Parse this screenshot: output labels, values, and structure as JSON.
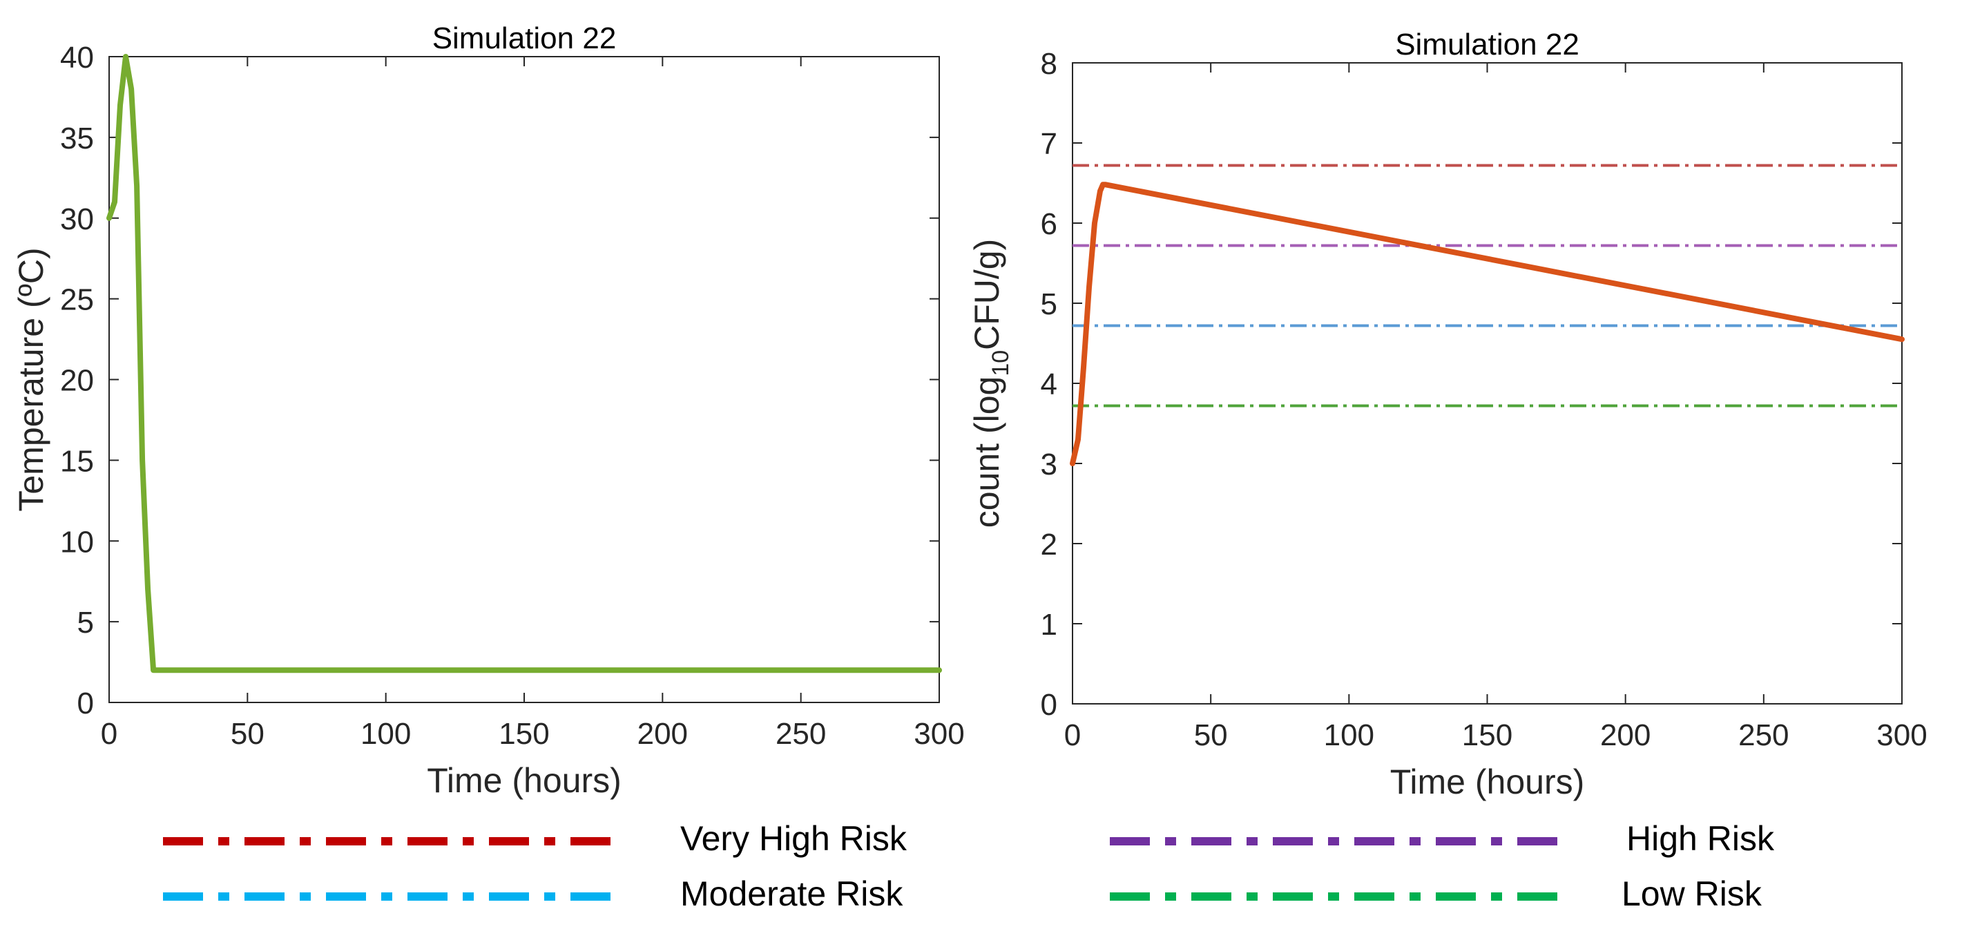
{
  "chart_data": [
    {
      "type": "line",
      "title": "Simulation 22",
      "xlabel": "Time (hours)",
      "ylabel": "Temperature (ºC)",
      "xlim": [
        0,
        300
      ],
      "ylim": [
        0,
        40
      ],
      "xticks": [
        "0",
        "50",
        "100",
        "150",
        "200",
        "250",
        "300"
      ],
      "yticks": [
        "0",
        "5",
        "10",
        "15",
        "20",
        "25",
        "30",
        "35",
        "40"
      ],
      "grid": false,
      "series": [
        {
          "color": "#77ac30",
          "x": [
            0,
            1,
            2,
            4,
            6,
            8,
            10,
            12,
            14,
            16,
            300
          ],
          "y": [
            30,
            30.5,
            31,
            37,
            40,
            38,
            32,
            15,
            7,
            2,
            2
          ]
        }
      ]
    },
    {
      "type": "line",
      "title": "Simulation 22",
      "xlabel": "Time (hours)",
      "ylabel_prefix": "count (log",
      "ylabel_sub": "10",
      "ylabel_suffix": "CFU/g)",
      "xlim": [
        0,
        300
      ],
      "ylim": [
        0,
        8
      ],
      "xticks": [
        "0",
        "50",
        "100",
        "150",
        "200",
        "250",
        "300"
      ],
      "yticks": [
        "0",
        "1",
        "2",
        "3",
        "4",
        "5",
        "6",
        "7",
        "8"
      ],
      "grid": false,
      "series": [
        {
          "color": "#d95319",
          "x": [
            0,
            2,
            4,
            6,
            8,
            10,
            11,
            12,
            300
          ],
          "y": [
            3.0,
            3.3,
            4.2,
            5.2,
            6.0,
            6.4,
            6.48,
            6.48,
            4.55
          ]
        }
      ],
      "thresholds": [
        {
          "y": 6.72,
          "color": "#c0504d",
          "label": "Very High Risk"
        },
        {
          "y": 5.72,
          "color": "#a55fb5",
          "label": "High Risk"
        },
        {
          "y": 4.72,
          "color": "#5b9bd5",
          "label": "Moderate Risk"
        },
        {
          "y": 3.72,
          "color": "#4fa33a",
          "label": "Low Risk"
        }
      ]
    }
  ],
  "legend": [
    {
      "label": "Very High Risk",
      "color": "#c00000"
    },
    {
      "label": "High Risk",
      "color": "#7030a0"
    },
    {
      "label": "Moderate Risk",
      "color": "#00b0f0"
    },
    {
      "label": "Low Risk",
      "color": "#00b050"
    }
  ]
}
